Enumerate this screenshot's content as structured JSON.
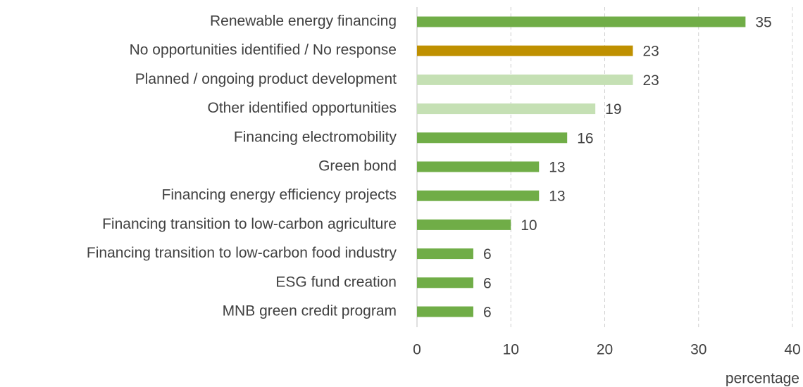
{
  "chart_data": {
    "type": "bar",
    "orientation": "horizontal",
    "categories": [
      "Renewable energy financing",
      "No opportunities identified / No response",
      "Planned / ongoing product development",
      "Other identified opportunities",
      "Financing electromobility",
      "Green bond",
      "Financing energy efficiency projects",
      "Financing transition to low-carbon agriculture",
      "Financing transition to low-carbon food industry",
      "ESG fund creation",
      "MNB green credit program"
    ],
    "values": [
      35,
      23,
      23,
      19,
      16,
      13,
      13,
      10,
      6,
      6,
      6
    ],
    "colors": [
      "#70ad47",
      "#bf9000",
      "#c5e0b4",
      "#c5e0b4",
      "#70ad47",
      "#70ad47",
      "#70ad47",
      "#70ad47",
      "#70ad47",
      "#70ad47",
      "#70ad47"
    ],
    "xlim": [
      0,
      40
    ],
    "xticks": [
      0,
      10,
      20,
      30,
      40
    ],
    "xlabel": "percentage",
    "grid": true
  }
}
